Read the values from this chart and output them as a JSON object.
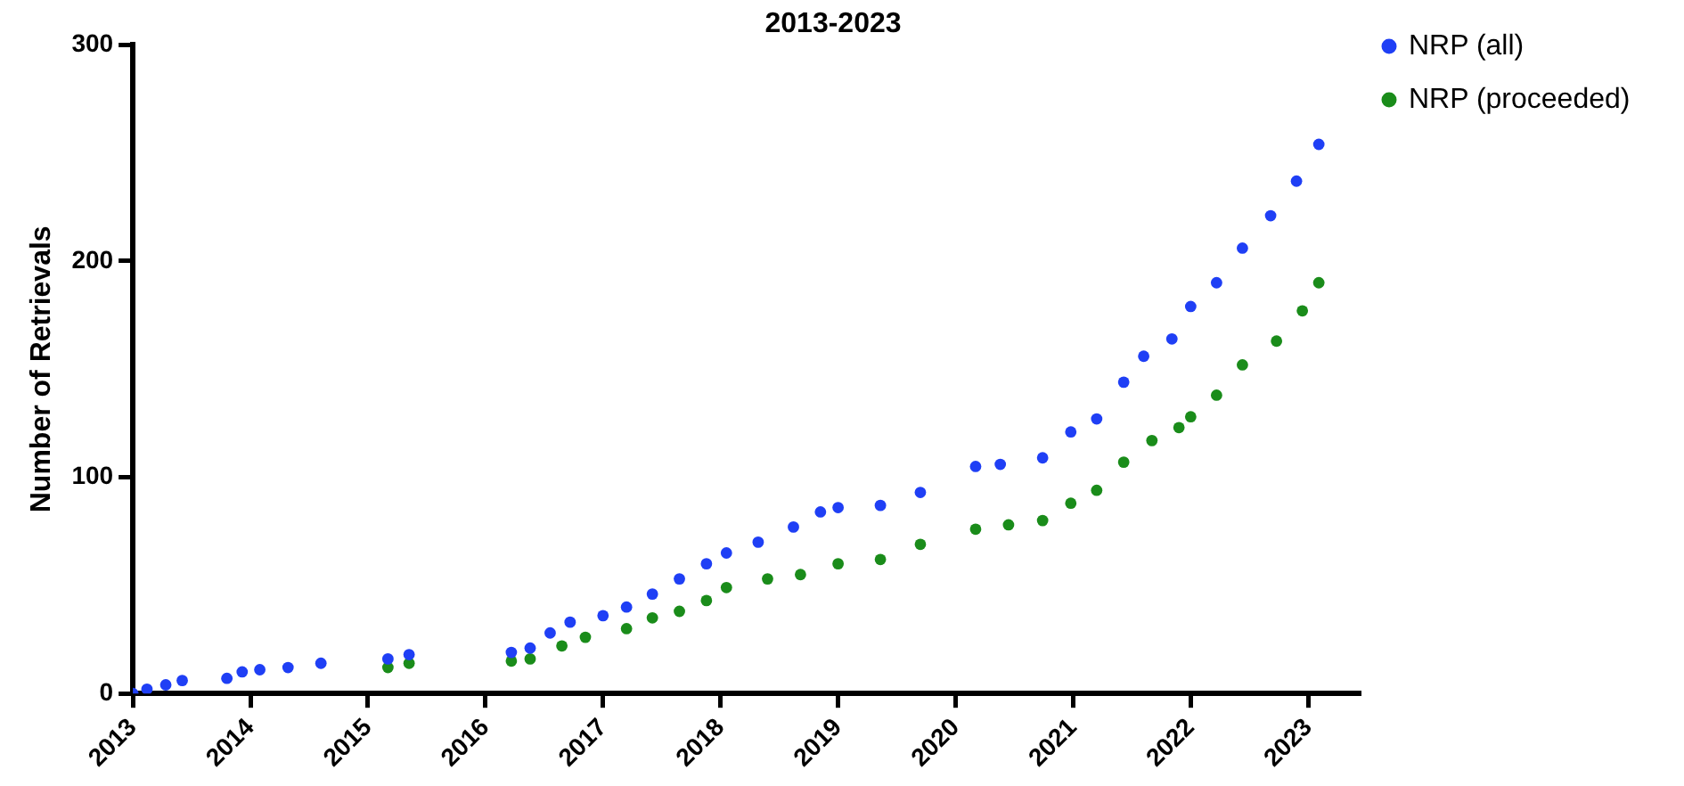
{
  "chart_data": {
    "type": "scatter",
    "title": "2013-2023",
    "ylabel": "Number of Retrievals",
    "xlim": [
      2013,
      2023.43
    ],
    "xticks": [
      2013,
      2014,
      2015,
      2016,
      2017,
      2018,
      2019,
      2020,
      2021,
      2022,
      2023
    ],
    "ylim": [
      0,
      300
    ],
    "yticks": [
      0,
      100,
      200,
      300
    ],
    "grid": false,
    "legend": "top right",
    "marker": "circle",
    "series": [
      {
        "name": "NRP (all)",
        "color": "#1f3ff5",
        "x": [
          2013,
          2013.12,
          2013.28,
          2013.42,
          2013.8,
          2013.93,
          2014.08,
          2014.32,
          2014.6,
          2015.17,
          2015.35,
          2016.22,
          2016.38,
          2016.55,
          2016.72,
          2017,
          2017.2,
          2017.42,
          2017.65,
          2017.88,
          2018.05,
          2018.32,
          2018.62,
          2018.85,
          2019,
          2019.36,
          2019.7,
          2020.17,
          2020.38,
          2020.74,
          2020.98,
          2021.2,
          2021.43,
          2021.6,
          2021.84,
          2022,
          2022.22,
          2022.44,
          2022.68,
          2022.9,
          2023.09
        ],
        "values": [
          0,
          2,
          4,
          6,
          7,
          10,
          11,
          12,
          14,
          16,
          18,
          19,
          21,
          28,
          33,
          36,
          40,
          46,
          53,
          60,
          65,
          70,
          77,
          84,
          86,
          87,
          93,
          105,
          106,
          109,
          121,
          127,
          144,
          156,
          164,
          179,
          190,
          206,
          221,
          237,
          254
        ]
      },
      {
        "name": "NRP (proceeded)",
        "color": "#1a8c1a",
        "x": [
          2015.17,
          2015.35,
          2016.22,
          2016.38,
          2016.65,
          2016.85,
          2017.2,
          2017.42,
          2017.65,
          2017.88,
          2018.05,
          2018.4,
          2018.68,
          2019,
          2019.36,
          2019.7,
          2020.17,
          2020.45,
          2020.74,
          2020.98,
          2021.2,
          2021.43,
          2021.67,
          2021.9,
          2022,
          2022.22,
          2022.44,
          2022.73,
          2022.95,
          2023.09
        ],
        "values": [
          12,
          14,
          15,
          16,
          22,
          26,
          30,
          35,
          38,
          43,
          49,
          53,
          55,
          60,
          62,
          69,
          76,
          78,
          80,
          88,
          94,
          107,
          117,
          123,
          128,
          138,
          152,
          163,
          177,
          190
        ]
      }
    ]
  }
}
